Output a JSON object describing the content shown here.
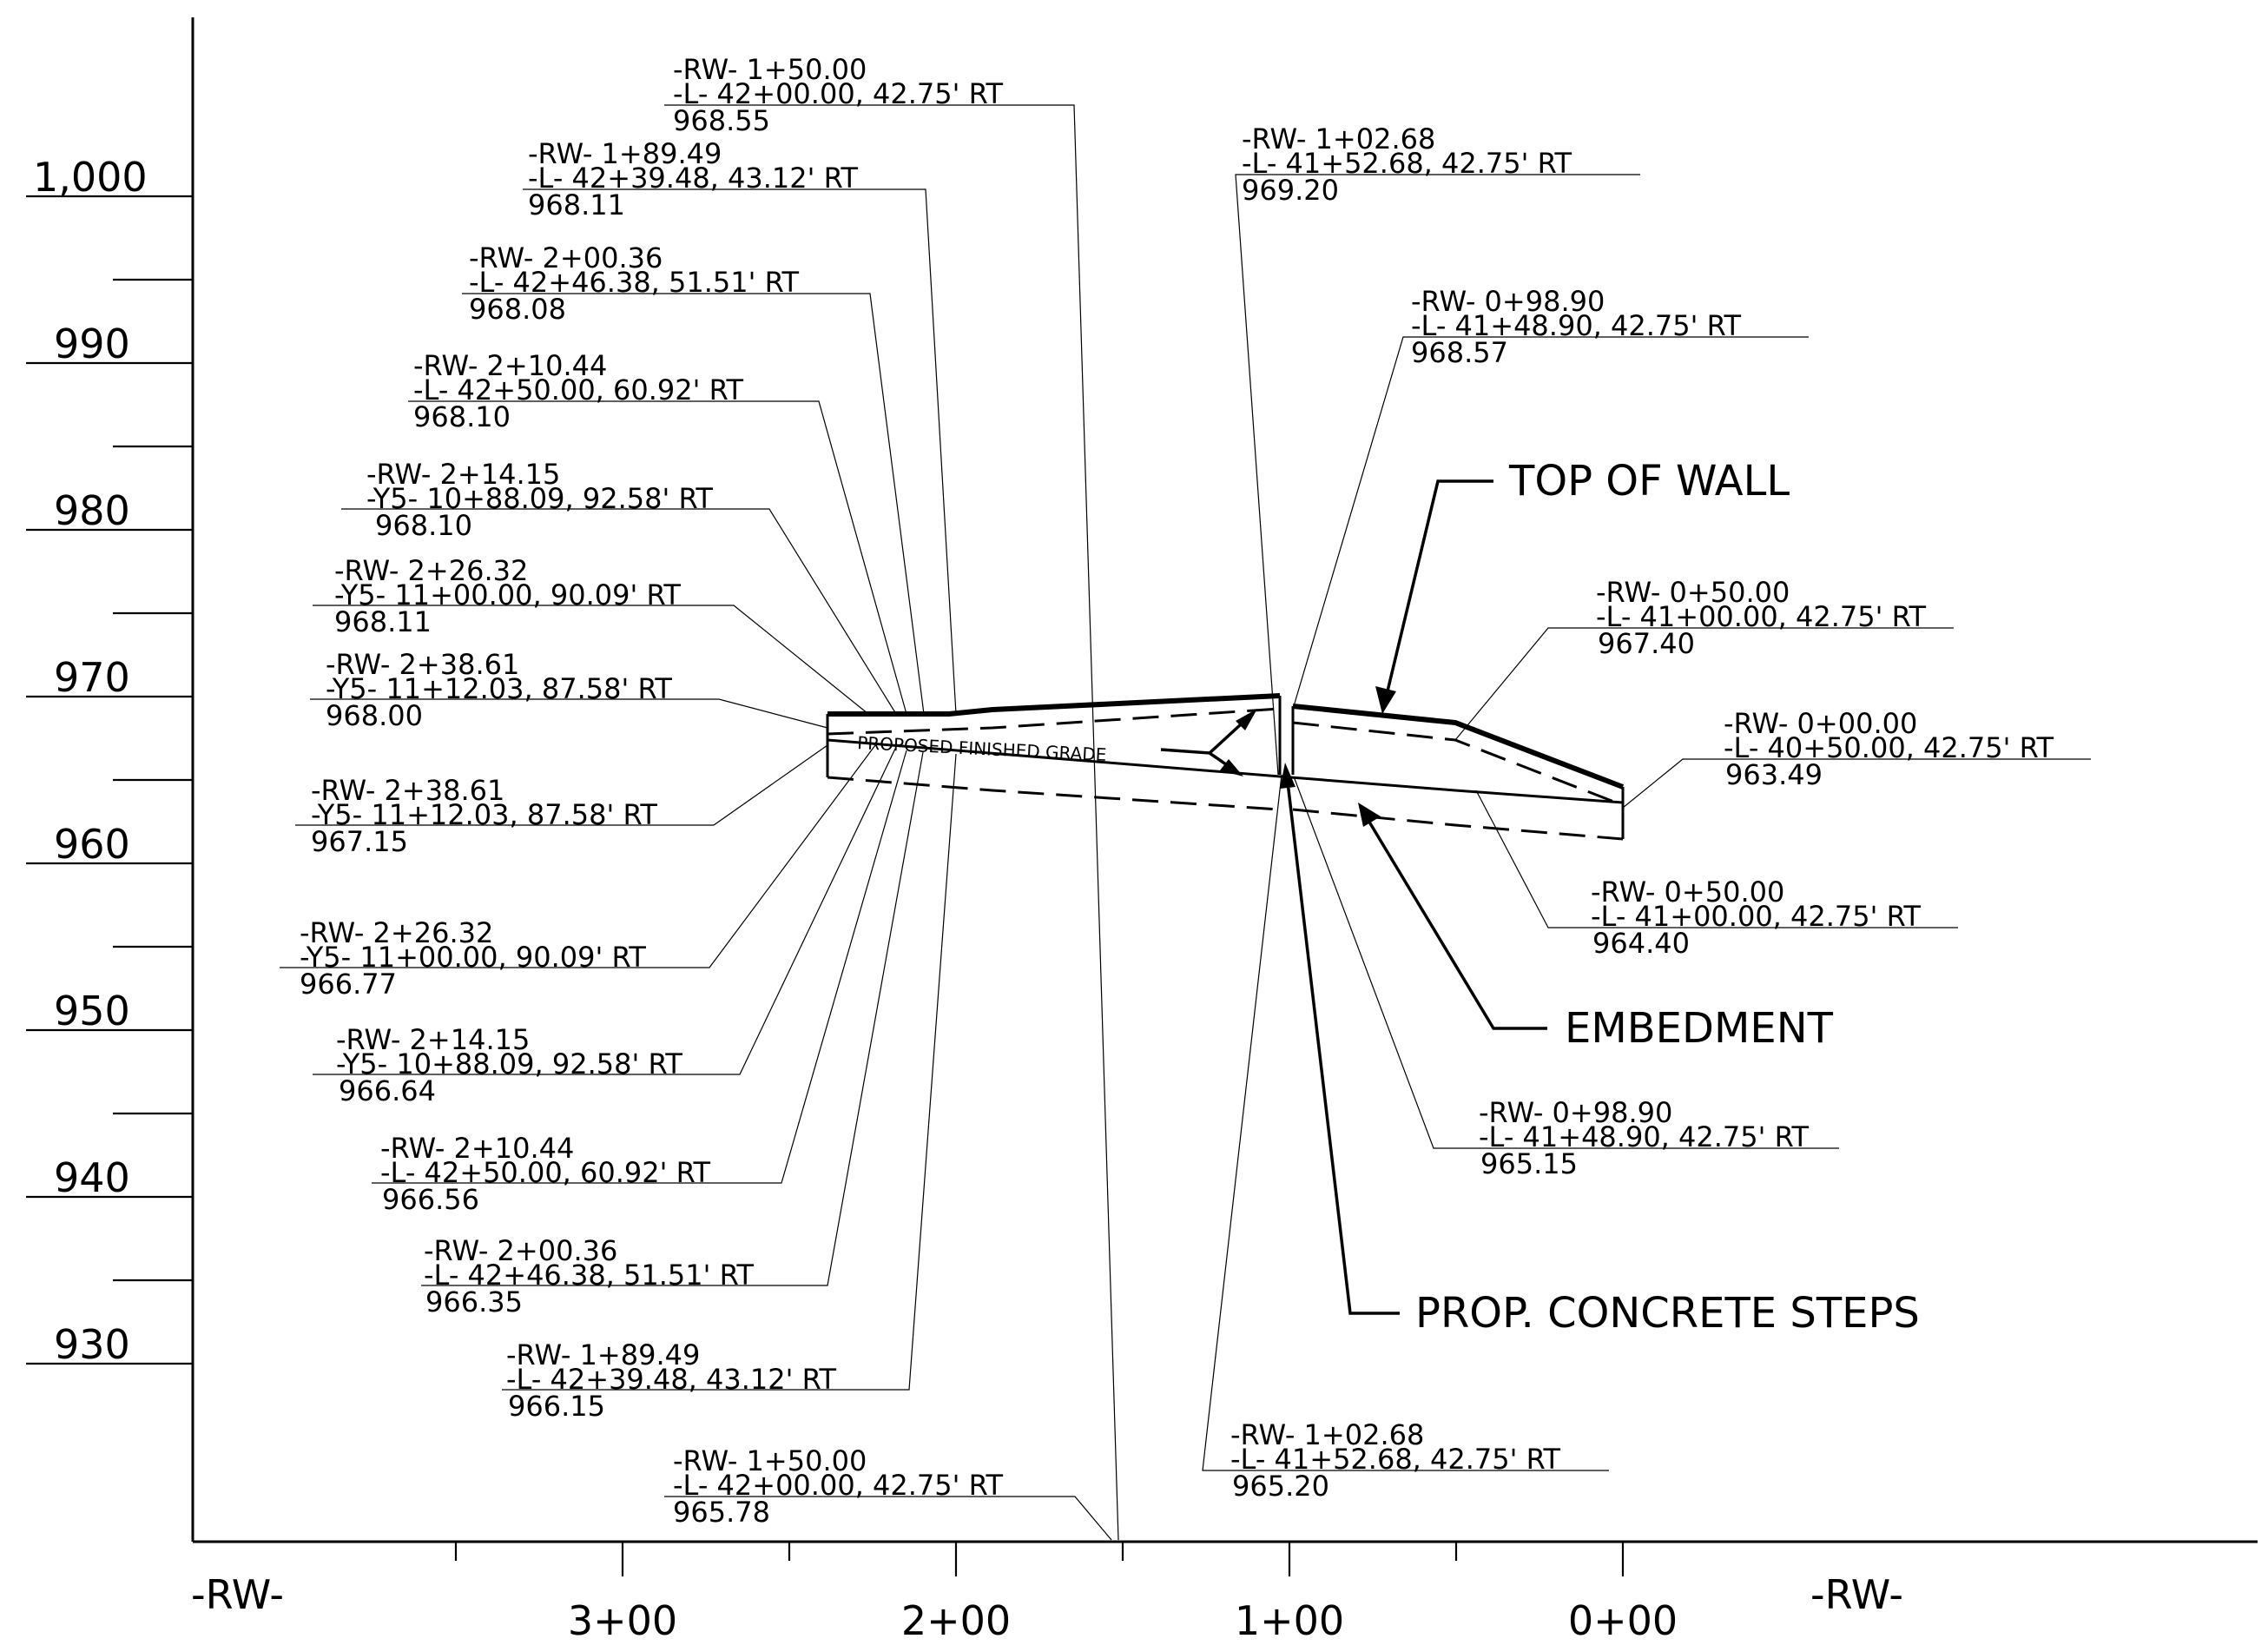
{
  "elevation_labels": [
    "1,000",
    "990",
    "980",
    "970",
    "960",
    "950",
    "940",
    "930"
  ],
  "station_labels": [
    "3+00",
    "2+00",
    "1+00",
    "0+00"
  ],
  "alignment": {
    "left": "-RW-",
    "right": "-RW-"
  },
  "notes": {
    "top_of_wall": "TOP OF WALL",
    "embedment": "EMBEDMENT",
    "concrete_steps": "PROP. CONCRETE STEPS",
    "finished_grade": "PROPOSED FINISHED GRADE"
  },
  "callouts": [
    {
      "rw": "-RW- 1+50.00",
      "ref": "-L- 42+00.00, 42.75' RT",
      "elev": "968.55"
    },
    {
      "rw": "-RW- 1+89.49",
      "ref": "-L- 42+39.48, 43.12' RT",
      "elev": "968.11"
    },
    {
      "rw": "-RW- 2+00.36",
      "ref": "-L- 42+46.38, 51.51' RT",
      "elev": "968.08"
    },
    {
      "rw": "-RW- 2+10.44",
      "ref": "-L- 42+50.00, 60.92' RT",
      "elev": "968.10"
    },
    {
      "rw": "-RW- 2+14.15",
      "ref": "-Y5- 10+88.09, 92.58' RT",
      "elev": "968.10"
    },
    {
      "rw": "-RW- 2+26.32",
      "ref": "-Y5- 11+00.00, 90.09' RT",
      "elev": "968.11"
    },
    {
      "rw": "-RW- 2+38.61",
      "ref": "-Y5- 11+12.03, 87.58' RT",
      "elev": "968.00"
    },
    {
      "rw": "-RW- 2+38.61",
      "ref": "-Y5- 11+12.03, 87.58' RT",
      "elev": "967.15"
    },
    {
      "rw": "-RW- 2+26.32",
      "ref": "-Y5- 11+00.00, 90.09' RT",
      "elev": "966.77"
    },
    {
      "rw": "-RW- 2+14.15",
      "ref": "-Y5- 10+88.09, 92.58' RT",
      "elev": "966.64"
    },
    {
      "rw": "-RW- 2+10.44",
      "ref": "-L- 42+50.00, 60.92' RT",
      "elev": "966.56"
    },
    {
      "rw": "-RW- 2+00.36",
      "ref": "-L- 42+46.38, 51.51' RT",
      "elev": "966.35"
    },
    {
      "rw": "-RW- 1+89.49",
      "ref": "-L- 42+39.48, 43.12' RT",
      "elev": "966.15"
    },
    {
      "rw": "-RW- 1+50.00",
      "ref": "-L- 42+00.00, 42.75' RT",
      "elev": "965.78"
    },
    {
      "rw": "-RW- 1+02.68",
      "ref": "-L- 41+52.68, 42.75' RT",
      "elev": "969.20"
    },
    {
      "rw": "-RW- 0+98.90",
      "ref": "-L- 41+48.90, 42.75' RT",
      "elev": "968.57"
    },
    {
      "rw": "-RW- 0+50.00",
      "ref": "-L- 41+00.00, 42.75' RT",
      "elev": "967.40"
    },
    {
      "rw": "-RW- 0+00.00",
      "ref": "-L- 40+50.00, 42.75' RT",
      "elev": "963.49"
    },
    {
      "rw": "-RW- 0+50.00",
      "ref": "-L- 41+00.00, 42.75' RT",
      "elev": "964.40"
    },
    {
      "rw": "-RW- 0+98.90",
      "ref": "-L- 41+48.90, 42.75' RT",
      "elev": "965.15"
    },
    {
      "rw": "-RW- 1+02.68",
      "ref": "-L- 41+52.68, 42.75' RT",
      "elev": "965.20"
    }
  ]
}
